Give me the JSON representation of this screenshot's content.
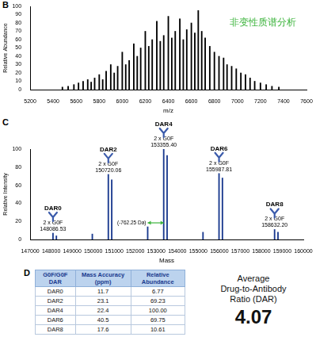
{
  "chart_data": [
    {
      "panel": "B",
      "type": "bar",
      "annotation": "非变性质谱分析",
      "x_label": "m/z",
      "y_label": "Relative Abundance",
      "x": [
        5480,
        5530,
        5580,
        5620,
        5660,
        5700,
        5730,
        5760,
        5800,
        5830,
        5860,
        5900,
        5930,
        5960,
        6000,
        6030,
        6060,
        6100,
        6130,
        6160,
        6200,
        6230,
        6260,
        6300,
        6330,
        6360,
        6400,
        6430,
        6460,
        6500,
        6530,
        6560,
        6600,
        6630,
        6660,
        6690,
        6720,
        6760,
        6800,
        6840,
        6880,
        6910,
        6950,
        6990,
        7030,
        7070,
        7110,
        7150,
        7200,
        7250,
        7300,
        7360
      ],
      "values": [
        3,
        4,
        6,
        8,
        10,
        12,
        9,
        14,
        18,
        12,
        22,
        30,
        20,
        28,
        45,
        30,
        35,
        55,
        40,
        50,
        70,
        52,
        60,
        82,
        58,
        65,
        88,
        62,
        70,
        85,
        60,
        72,
        80,
        68,
        95,
        70,
        62,
        52,
        45,
        40,
        38,
        30,
        28,
        25,
        20,
        18,
        14,
        10,
        8,
        6,
        4,
        3
      ],
      "color": "#000000",
      "xlim": [
        5200,
        7600
      ],
      "xticks": [
        5200,
        5400,
        5600,
        5800,
        6000,
        6200,
        6400,
        6600,
        6800,
        7000,
        7200,
        7400,
        7600
      ],
      "ylim": [
        0,
        100
      ],
      "yticks": [
        0,
        10,
        20,
        30,
        40,
        50,
        60,
        70,
        80,
        90,
        100
      ],
      "grid": false
    },
    {
      "panel": "C",
      "type": "bar",
      "x_label": "Mass",
      "y_label": "Relative Intensity",
      "x": [
        148086.53,
        148248.6,
        149958,
        150720.06,
        150882.1,
        152593.15,
        153355.4,
        153517.4,
        155225.6,
        155987.81,
        156149.8,
        158632.2,
        158794.2
      ],
      "values": [
        7,
        4,
        6,
        72,
        66,
        14,
        100,
        93,
        8,
        73,
        68,
        11,
        8
      ],
      "color": "#1a3a8f",
      "xlim": [
        147000,
        160000
      ],
      "xticks": [
        147000,
        148000,
        149000,
        150000,
        151000,
        152000,
        153000,
        154000,
        155000,
        156000,
        157000,
        158000,
        159000,
        160000
      ],
      "ylim": [
        0,
        100
      ],
      "yticks": [
        0,
        20,
        40,
        60,
        80,
        100
      ],
      "grid": false,
      "annotations": [
        {
          "label": "DAR0",
          "glycoform": "2 x G0F",
          "mass": {
            "value": 148086.53,
            "label": "148086.53"
          }
        },
        {
          "label": "DAR2",
          "glycoform": "2 x G0F",
          "mass": {
            "value": 150720.06,
            "label": "150720.06"
          }
        },
        {
          "label": "DAR4",
          "glycoform": "2 x G0F",
          "mass": {
            "value": 153355.4,
            "label": "153355.40"
          }
        },
        {
          "label": "DAR6",
          "glycoform": "2 x G0F",
          "mass": {
            "value": 155987.81,
            "label": "155987.81"
          }
        },
        {
          "label": "DAR8",
          "glycoform": "2 x G0F",
          "mass": {
            "value": 158632.2,
            "label": "158632.20"
          }
        }
      ],
      "shift": {
        "text": "(-762.25 Da)",
        "from": 152593.15,
        "to": 153355.4
      }
    }
  ],
  "table": {
    "panel": "D",
    "header": [
      "G0F/G0F DAR",
      "Mass Accuracy (ppm)",
      "Relative Abundance"
    ],
    "rows": [
      [
        "DAR0",
        "11.7",
        "6.77"
      ],
      [
        "DAR2",
        "23.1",
        "69.23"
      ],
      [
        "DAR4",
        "22.4",
        "100.00"
      ],
      [
        "DAR6",
        "40.5",
        "69.75"
      ],
      [
        "DAR8",
        "17.6",
        "10.61"
      ]
    ]
  },
  "summary": {
    "lines": [
      "Average",
      "Drug-to-Antibody",
      "Ratio (DAR)"
    ],
    "value": "4.07"
  }
}
